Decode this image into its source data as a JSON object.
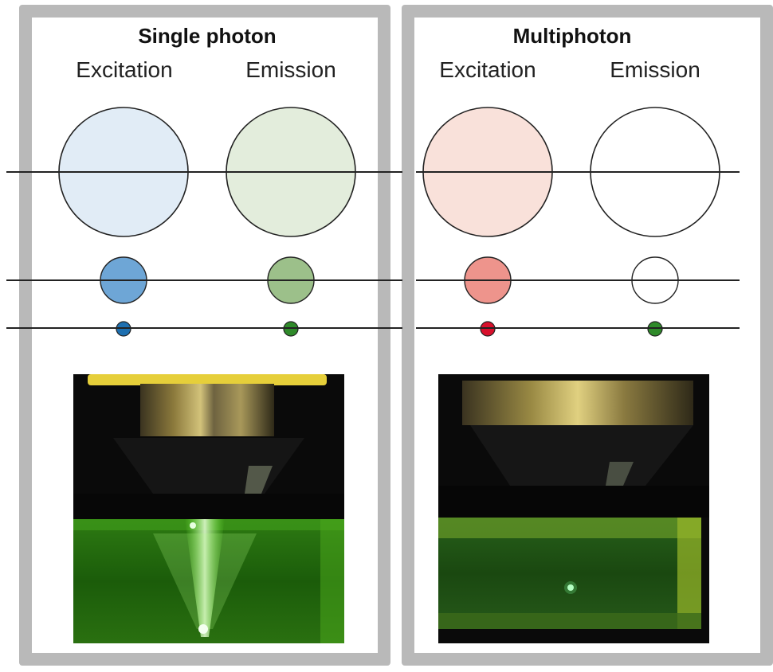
{
  "panels": {
    "single": {
      "title": "Single photon",
      "excitation_label": "Excitation",
      "emission_label": "Emission"
    },
    "multi": {
      "title": "Multiphoton",
      "excitation_label": "Excitation",
      "emission_label": "Emission"
    }
  },
  "colors": {
    "single_excitation_fill": "#e1ecf6",
    "single_excitation_dot": "#6ea6d6",
    "single_excitation_small": "#1d6fb0",
    "single_emission_fill": "#e3eddc",
    "single_emission_dot": "#9cc08a",
    "single_emission_small": "#2f8a2a",
    "multi_excitation_fill": "#f9e1da",
    "multi_excitation_dot": "#ee948c",
    "multi_excitation_small": "#d8102c",
    "multi_emission_fill": "#ffffff",
    "multi_emission_dot": "#ffffff",
    "multi_emission_small": "#2f8a2a",
    "panel_border": "#b9b9b9",
    "fluorescence": "#7dff3a"
  }
}
